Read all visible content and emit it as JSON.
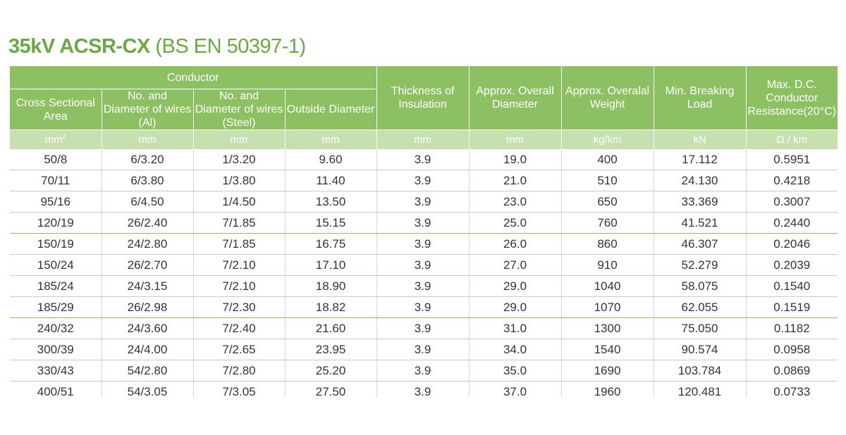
{
  "title": {
    "bold": "35kV ACSR-CX",
    "rest": " (BS EN 50397-1)"
  },
  "header": {
    "conductor": "Conductor",
    "cross_section": "Cross Sectional Area",
    "wires_al": "No. and Diameter of wires (Al)",
    "wires_steel": "No. and Diameter of wires (Steel)",
    "outside_diameter": "Outside Diameter",
    "thickness": "Thickness of Insulation",
    "overall_diameter": "Approx. Overall Diameter",
    "weight": "Approx. Overalal Weight",
    "breaking_load": "Min. Breaking Load",
    "resistance": "Max. D.C. Conductor Resistance(20°C)"
  },
  "units": [
    "mm",
    "2",
    "mm",
    "mm",
    "mm",
    "mm",
    "mm",
    "kg/km",
    "kN",
    "Ω / km"
  ],
  "rows": [
    [
      "50/8",
      "6/3.20",
      "1/3.20",
      "9.60",
      "3.9",
      "19.0",
      "400",
      "17.112",
      "0.5951"
    ],
    [
      "70/11",
      "6/3.80",
      "1/3.80",
      "11.40",
      "3.9",
      "21.0",
      "510",
      "24.130",
      "0.4218"
    ],
    [
      "95/16",
      "6/4.50",
      "1/4.50",
      "13.50",
      "3.9",
      "23.0",
      "650",
      "33.369",
      "0.3007"
    ],
    [
      "120/19",
      "26/2.40",
      "7/1.85",
      "15.15",
      "3.9",
      "25.0",
      "760",
      "41.521",
      "0.2440"
    ],
    [
      "150/19",
      "24/2.80",
      "7/1.85",
      "16.75",
      "3.9",
      "26.0",
      "860",
      "46.307",
      "0.2046"
    ],
    [
      "150/24",
      "26/2.70",
      "7/2.10",
      "17.10",
      "3.9",
      "27.0",
      "910",
      "52.279",
      "0.2039"
    ],
    [
      "185/24",
      "24/3.15",
      "7/2.10",
      "18.90",
      "3.9",
      "29.0",
      "1040",
      "58.075",
      "0.1540"
    ],
    [
      "185/29",
      "26/2.98",
      "7/2.30",
      "18.82",
      "3.9",
      "29.0",
      "1070",
      "62.055",
      "0.1519"
    ],
    [
      "240/32",
      "24/3.60",
      "7/2.40",
      "21.60",
      "3.9",
      "31.0",
      "1300",
      "75.050",
      "0.1182"
    ],
    [
      "300/39",
      "24/4.00",
      "7/2.65",
      "23.95",
      "3.9",
      "34.0",
      "1540",
      "90.574",
      "0.0958"
    ],
    [
      "330/43",
      "54/2.80",
      "7/2.80",
      "25.20",
      "3.9",
      "35.0",
      "1690",
      "103.784",
      "0.0869"
    ],
    [
      "400/51",
      "54/3.05",
      "7/3.05",
      "27.50",
      "3.9",
      "37.0",
      "1960",
      "120.481",
      "0.0733"
    ]
  ],
  "colors": {
    "title": "#6aa844",
    "header_bg": "#8cc063",
    "units_bg": "#c6e0b0",
    "group_divider": "#8cc063"
  }
}
